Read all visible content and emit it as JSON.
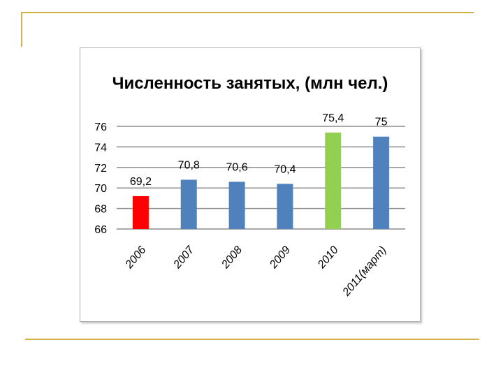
{
  "chart_data": {
    "type": "bar",
    "title": "Численность занятых, (млн чел.)",
    "categories": [
      "2006",
      "2007",
      "2008",
      "2009",
      "2010",
      "2011(март)"
    ],
    "values": [
      69.2,
      70.8,
      70.6,
      70.4,
      75.4,
      75
    ],
    "value_labels": [
      "69,2",
      "70,8",
      "70,6",
      "70,4",
      "75,4",
      "75"
    ],
    "bar_colors": [
      "#ff0000",
      "#4f81bd",
      "#4f81bd",
      "#4f81bd",
      "#92d050",
      "#4f81bd"
    ],
    "ylim": [
      66,
      76
    ],
    "yticks": [
      "66",
      "68",
      "70",
      "72",
      "74",
      "76"
    ],
    "grid": true,
    "legend": "none"
  },
  "colors": {
    "decor_line": "#d4b24a",
    "grid": "#8c8c8c",
    "frame": "#b0b0b0"
  }
}
